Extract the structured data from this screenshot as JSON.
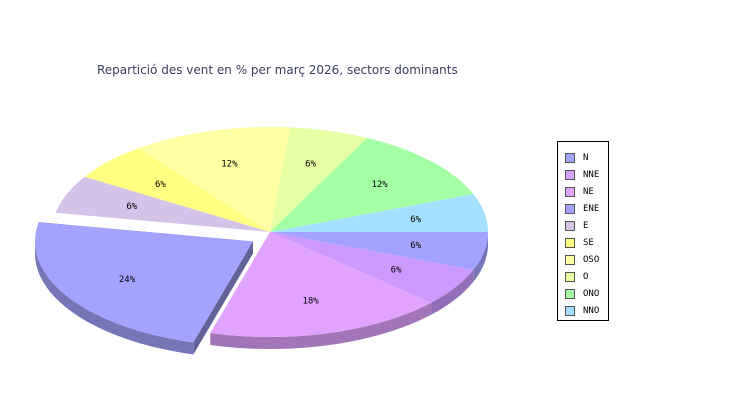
{
  "chart_data": {
    "type": "pie",
    "title": "Repartició des vent en % per març 2026, sectors dominants",
    "categories": [
      "N",
      "NNE",
      "NE",
      "ENE",
      "E",
      "SE",
      "OSO",
      "O",
      "ONO",
      "NNO"
    ],
    "values": [
      6,
      6,
      18,
      24,
      6,
      6,
      12,
      6,
      12,
      6
    ],
    "labels": [
      "6%",
      "6%",
      "18%",
      "24%",
      "6%",
      "6%",
      "12%",
      "6%",
      "12%",
      "6%"
    ],
    "colors": [
      "#a3a3ff",
      "#cc99ff",
      "#e0a3ff",
      "#a3a3ff",
      "#d4c2e8",
      "#ffff80",
      "#ffffa3",
      "#e6ffa3",
      "#a3ffa3",
      "#a3e0ff"
    ],
    "legend": [
      "N",
      "NNE",
      "NE",
      "ENE",
      "E",
      "SE",
      "OSO",
      "O",
      "ONO",
      "NNO"
    ],
    "legend_colors": [
      "#a3a3ff",
      "#d6a3ff",
      "#e0a3ff",
      "#a3a3ff",
      "#d4c2e8",
      "#ffff80",
      "#ffffa3",
      "#e6ffa3",
      "#a3ffa3",
      "#a3e0ff"
    ],
    "exploded": "ENE",
    "legend_position": "right"
  }
}
